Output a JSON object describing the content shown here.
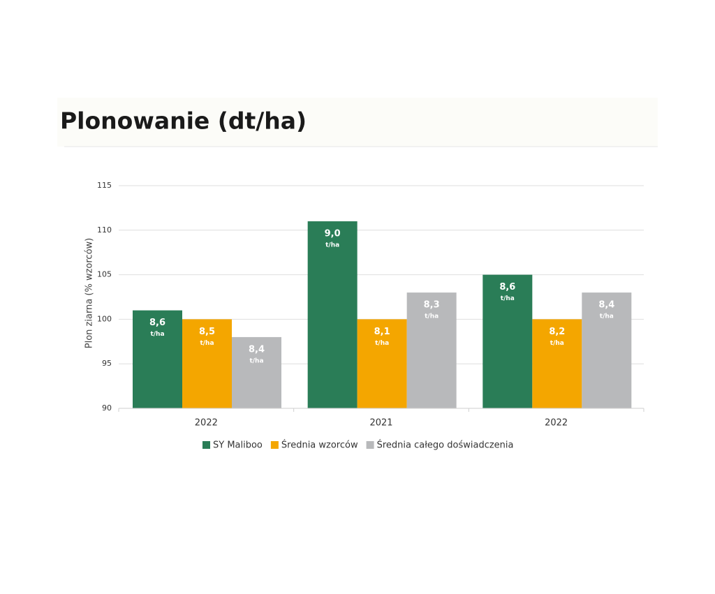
{
  "chart_data": {
    "type": "bar",
    "title": "Plonowanie (dt/ha)",
    "y_label": "Plon ziarna (% wzorców)",
    "categories": [
      "2022",
      "2021",
      "2022"
    ],
    "ylim": [
      90,
      115
    ],
    "yticks": [
      90,
      95,
      100,
      105,
      110,
      115
    ],
    "grid": true,
    "yield_unit": "t/ha",
    "series": [
      {
        "name": "SY Maliboo",
        "color": "#2a7d57",
        "values": [
          101,
          111,
          105
        ],
        "yield_labels": [
          "8,6",
          "9,0",
          "8,6"
        ]
      },
      {
        "name": "Średnia wzorców",
        "color": "#f4a600",
        "values": [
          100,
          100,
          100
        ],
        "yield_labels": [
          "8,5",
          "8,1",
          "8,2"
        ]
      },
      {
        "name": "Średnia całego doświadczenia",
        "color": "#b8b9bb",
        "values": [
          98,
          103,
          103
        ],
        "yield_labels": [
          "8,4",
          "8,3",
          "8,4"
        ]
      }
    ],
    "legend": "bottom"
  }
}
